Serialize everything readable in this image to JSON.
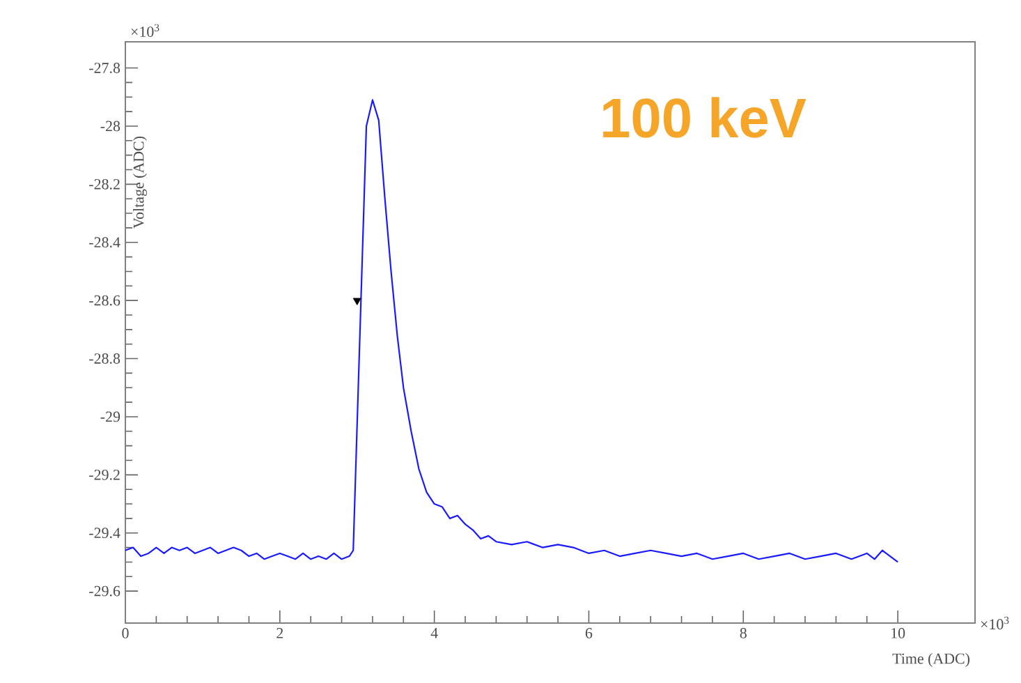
{
  "chart_data": {
    "type": "line",
    "xlabel": "Time (ADC)",
    "ylabel": "Voltage (ADC)",
    "xlim": [
      0,
      11
    ],
    "ylim": [
      -29.71,
      -27.71
    ],
    "xticks": [
      0,
      2,
      4,
      6,
      8,
      10
    ],
    "yticks": [
      -27.8,
      -28,
      -28.2,
      -28.4,
      -28.6,
      -28.8,
      -29,
      -29.2,
      -29.4,
      -29.6
    ],
    "annotations": [
      "100 keV",
      "×10$^{3}$",
      "×10$^{3}$"
    ],
    "series": [
      {
        "color": "#1a1aff",
        "marker": "none",
        "x": [
          0,
          0.1,
          0.2,
          0.3,
          0.4,
          0.5,
          0.6,
          0.7,
          0.8,
          0.9,
          1.0,
          1.1,
          1.2,
          1.3,
          1.4,
          1.5,
          1.6,
          1.7,
          1.8,
          1.9,
          2.0,
          2.1,
          2.2,
          2.3,
          2.4,
          2.5,
          2.6,
          2.7,
          2.8,
          2.9,
          2.95,
          3.05,
          3.12,
          3.2,
          3.28,
          3.36,
          3.44,
          3.52,
          3.6,
          3.7,
          3.8,
          3.9,
          4.0,
          4.1,
          4.2,
          4.3,
          4.4,
          4.5,
          4.6,
          4.7,
          4.8,
          5.0,
          5.2,
          5.4,
          5.6,
          5.8,
          6.0,
          6.2,
          6.4,
          6.6,
          6.8,
          7.0,
          7.2,
          7.4,
          7.6,
          7.8,
          8.0,
          8.2,
          8.4,
          8.6,
          8.8,
          9.0,
          9.2,
          9.4,
          9.6,
          9.7,
          9.8,
          9.9,
          10.0
        ],
        "values": [
          -29.46,
          -29.45,
          -29.48,
          -29.47,
          -29.45,
          -29.47,
          -29.45,
          -29.46,
          -29.45,
          -29.47,
          -29.46,
          -29.45,
          -29.47,
          -29.46,
          -29.45,
          -29.46,
          -29.48,
          -29.47,
          -29.49,
          -29.48,
          -29.47,
          -29.48,
          -29.49,
          -29.47,
          -29.49,
          -29.48,
          -29.49,
          -29.47,
          -29.49,
          -29.48,
          -29.46,
          -28.6,
          -28.0,
          -27.91,
          -27.98,
          -28.25,
          -28.5,
          -28.72,
          -28.9,
          -29.05,
          -29.18,
          -29.26,
          -29.3,
          -29.31,
          -29.35,
          -29.34,
          -29.37,
          -29.39,
          -29.42,
          -29.41,
          -29.43,
          -29.44,
          -29.43,
          -29.45,
          -29.44,
          -29.45,
          -29.47,
          -29.46,
          -29.48,
          -29.47,
          -29.46,
          -29.47,
          -29.48,
          -29.47,
          -29.49,
          -29.48,
          -29.47,
          -29.49,
          -29.48,
          -29.47,
          -29.49,
          -29.48,
          -29.47,
          -29.49,
          -29.47,
          -29.49,
          -29.46,
          -29.48,
          -29.5
        ]
      },
      {
        "type": "scatter",
        "color": "#000000",
        "marker": "triangle",
        "x": [
          3.0
        ],
        "values": [
          -28.6
        ]
      }
    ]
  }
}
